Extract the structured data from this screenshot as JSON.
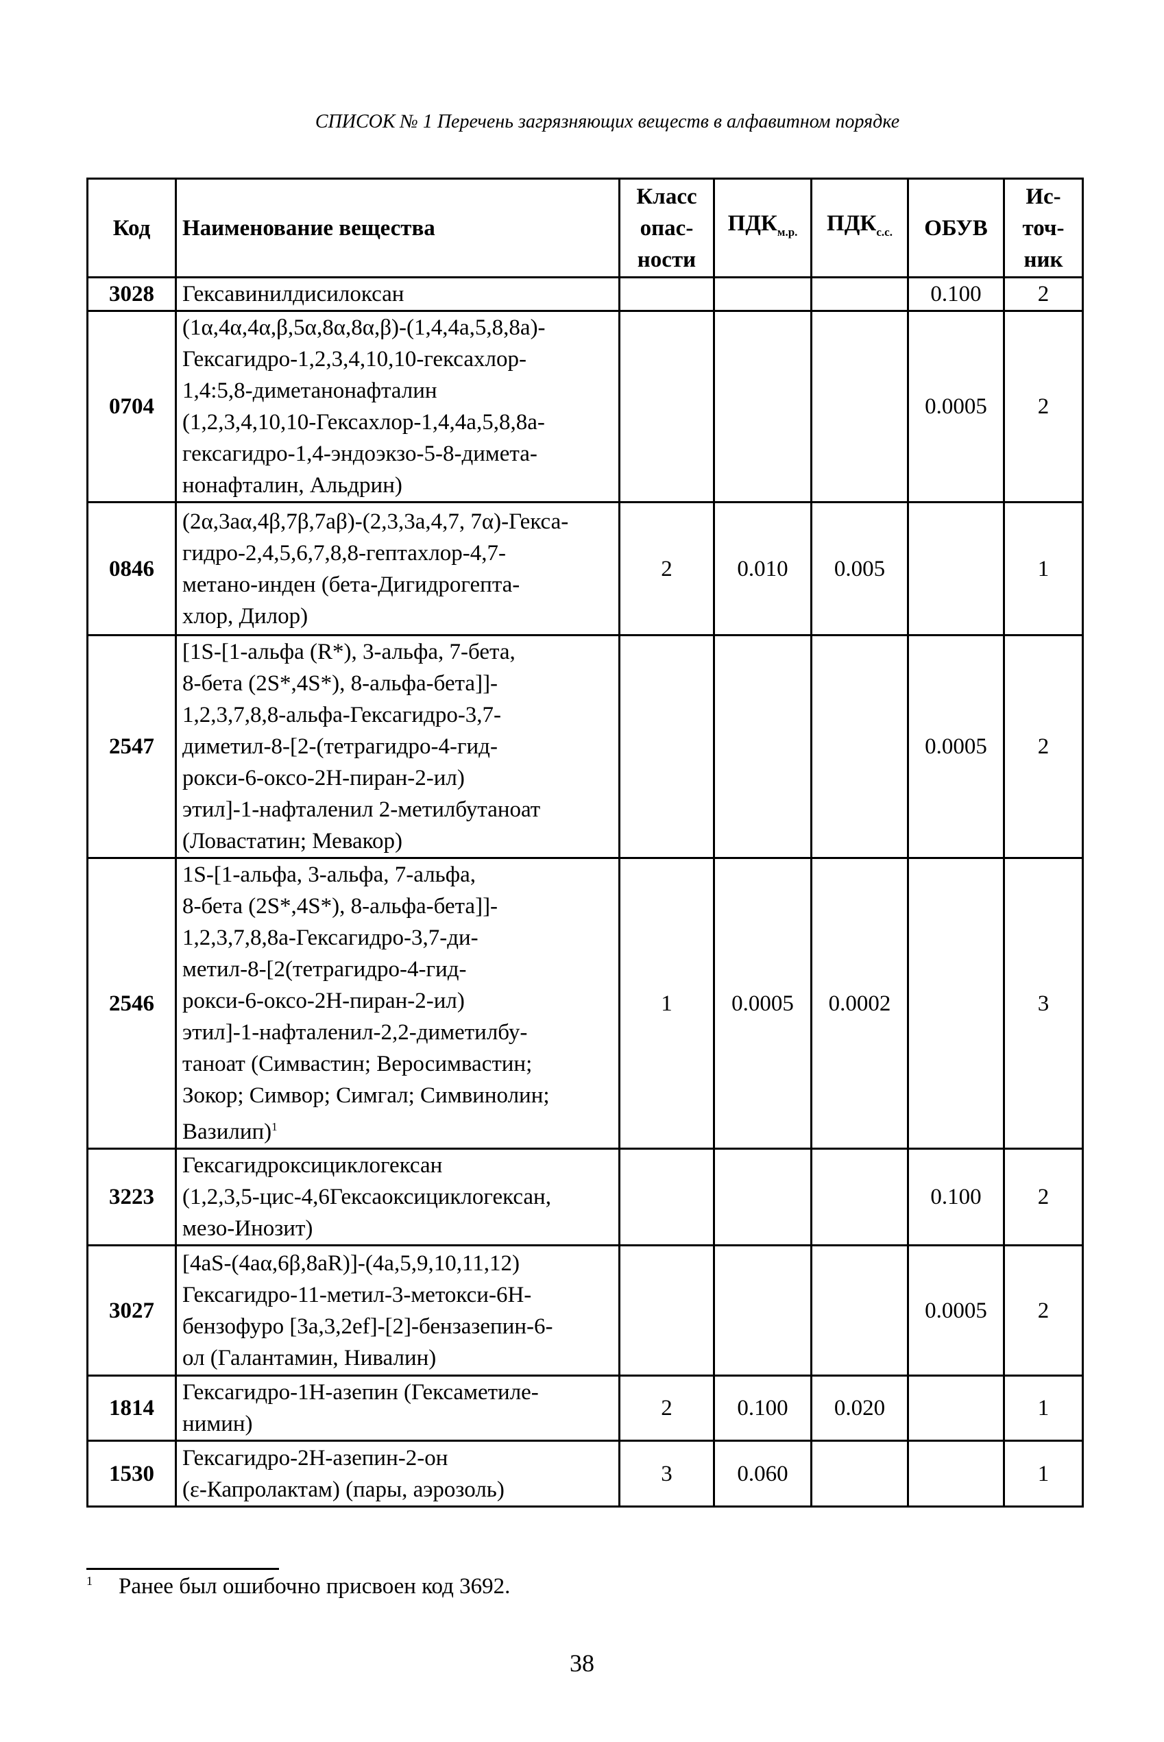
{
  "title": "СПИСОК № 1   Перечень загрязняющих веществ в алфавитном порядке",
  "table": {
    "headers": {
      "code": "Код",
      "name": "Наименование вещества",
      "class": [
        "Класс",
        "опас-",
        "ности"
      ],
      "pdk_mr": "ПДК",
      "pdk_mr_sub": "м.р.",
      "pdk_ss": "ПДК",
      "pdk_ss_sub": "с.с.",
      "obuv": "ОБУВ",
      "source": [
        "Ис-",
        "точ-",
        "ник"
      ]
    },
    "rows": [
      {
        "code": "3028",
        "name": [
          "Гексавинилдисилоксан"
        ],
        "class": "",
        "pdk_mr": "",
        "pdk_ss": "",
        "obuv": "0.100",
        "source": "2"
      },
      {
        "code": "0704",
        "name": [
          "(1α,4α,4α,β,5α,8α,8α,β)-(1,4,4a,5,8,8a)-",
          "Гексагидро-1,2,3,4,10,10-гексахлор-",
          "1,4:5,8-диметанонафталин",
          "(1,2,3,4,10,10-Гексахлор-1,4,4a,5,8,8a-",
          "гексагидро-1,4-эндоэкзо-5-8-димета-",
          "нонафталин, Альдрин)"
        ],
        "class": "",
        "pdk_mr": "",
        "pdk_ss": "",
        "obuv": "0.0005",
        "source": "2"
      },
      {
        "code": "0846",
        "name": [
          "(2α,3aα,4β,7β,7aβ)-(2,3,3a,4,7, 7α)-Гекса-",
          "гидро-2,4,5,6,7,8,8-гептахлор-4,7-",
          "метано-инден (бета-Дигидрогепта-",
          "хлор, Дилор)"
        ],
        "class": "2",
        "pdk_mr": "0.010",
        "pdk_ss": "0.005",
        "obuv": "",
        "source": "1"
      },
      {
        "code": "2547",
        "name": [
          "[1S-[1-альфа (R*), 3-альфа, 7-бета,",
          "8-бета (2S*,4S*), 8-альфа-бета]]-",
          "1,2,3,7,8,8-альфа-Гексагидро-3,7-",
          "диметил-8-[2-(тетрагидро-4-гид-",
          "рокси-6-оксо-2H-пиран-2-ил)",
          "этил]-1-нафталенил 2-метилбутаноат",
          "(Ловастатин; Мевакор)"
        ],
        "class": "",
        "pdk_mr": "",
        "pdk_ss": "",
        "obuv": "0.0005",
        "source": "2"
      },
      {
        "code": "2546",
        "name": [
          "1S-[1-альфа, 3-альфа, 7-альфа,",
          "8-бета (2S*,4S*), 8-альфа-бета]]-",
          "1,2,3,7,8,8a-Гексагидро-3,7-ди-",
          "метил-8-[2(тетрагидро-4-гид-",
          "рокси-6-оксо-2H-пиран-2-ил)",
          "этил]-1-нафталенил-2,2-диметилбу-",
          "таноат (Симвастин; Веросимвастин;",
          "Зокор; Симвор; Симгал; Симвинолин;",
          "Вазилип)"
        ],
        "name_footnote": "1",
        "class": "1",
        "pdk_mr": "0.0005",
        "pdk_ss": "0.0002",
        "obuv": "",
        "source": "3"
      },
      {
        "code": "3223",
        "name": [
          "Гексагидроксициклогексан",
          "(1,2,3,5-цис-4,6Гексаоксициклогексан,",
          "мезо-Инозит)"
        ],
        "class": "",
        "pdk_mr": "",
        "pdk_ss": "",
        "obuv": "0.100",
        "source": "2"
      },
      {
        "code": "3027",
        "name": [
          "[4aS-(4aα,6β,8aR)]-(4a,5,9,10,11,12)",
          "Гексагидро-11-метил-3-метокси-6H-",
          "бензофуро [3a,3,2ef]-[2]-бензазепин-6-",
          "ол (Галантамин, Нивалин)"
        ],
        "class": "",
        "pdk_mr": "",
        "pdk_ss": "",
        "obuv": "0.0005",
        "source": "2"
      },
      {
        "code": "1814",
        "name": [
          "Гексагидро-1H-азепин (Гексаметиле-",
          "нимин)"
        ],
        "class": "2",
        "pdk_mr": "0.100",
        "pdk_ss": "0.020",
        "obuv": "",
        "source": "1"
      },
      {
        "code": "1530",
        "name": [
          "Гексагидро-2H-азепин-2-он",
          "(ε-Капролактам) (пары, аэрозоль)"
        ],
        "class": "3",
        "pdk_mr": "0.060",
        "pdk_ss": "",
        "obuv": "",
        "source": "1"
      }
    ]
  },
  "footnote": {
    "mark": "1",
    "text": "Ранее был ошибочно присвоен код 3692."
  },
  "page_number": "38"
}
